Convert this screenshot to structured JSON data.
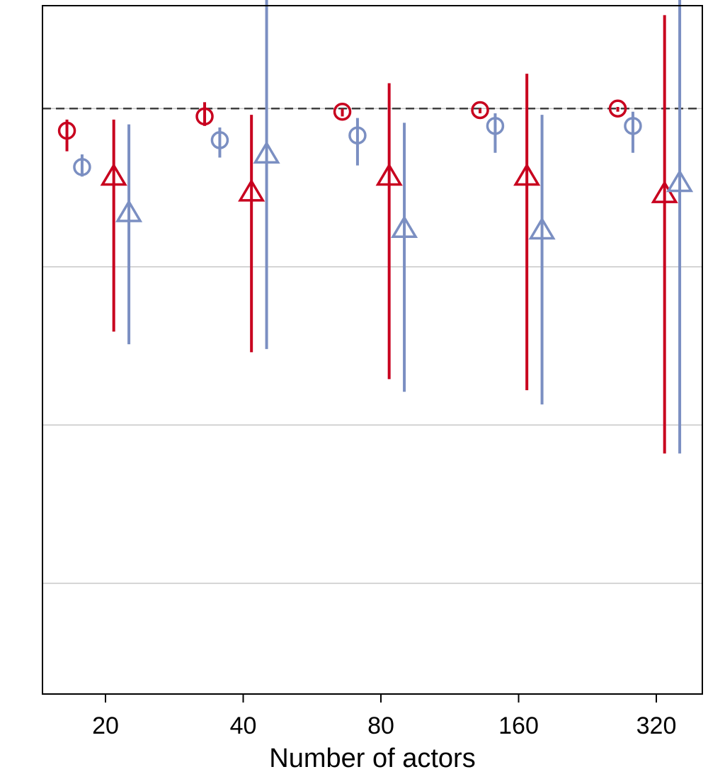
{
  "chart_data": {
    "type": "scatter",
    "xlabel": "Number of actors",
    "categories": [
      "20",
      "40",
      "80",
      "160",
      "320"
    ],
    "ylim": [
      -3.2,
      1.15
    ],
    "y_gridlines": [
      -2.5,
      -1.5,
      -0.5,
      0.5,
      1.5
    ],
    "reference_line": 0.5,
    "grid": true,
    "colors": {
      "red": "#c8001e",
      "blue": "#7b8fc2",
      "grid": "#c8c8c8",
      "reference": "#404040"
    },
    "series": [
      {
        "marker": "circle",
        "color": "#c8001e",
        "offset": -0.28,
        "points": [
          {
            "y": 0.36,
            "low": 0.23,
            "high": 0.43
          },
          {
            "y": 0.45,
            "low": 0.39,
            "high": 0.54
          },
          {
            "y": 0.48,
            "low": 0.45,
            "high": 0.5
          },
          {
            "y": 0.49,
            "low": 0.47,
            "high": 0.5
          },
          {
            "y": 0.5,
            "low": 0.48,
            "high": 0.51
          }
        ]
      },
      {
        "marker": "circle",
        "color": "#7b8fc2",
        "offset": -0.17,
        "points": [
          {
            "y": 0.13,
            "low": 0.07,
            "high": 0.21
          },
          {
            "y": 0.3,
            "low": 0.19,
            "high": 0.38
          },
          {
            "y": 0.33,
            "low": 0.14,
            "high": 0.44
          },
          {
            "y": 0.39,
            "low": 0.22,
            "high": 0.47
          },
          {
            "y": 0.39,
            "low": 0.22,
            "high": 0.48
          }
        ]
      },
      {
        "marker": "triangle",
        "color": "#c8001e",
        "offset": 0.06,
        "points": [
          {
            "y": 0.06,
            "low": -0.91,
            "high": 0.43
          },
          {
            "y": -0.04,
            "low": -1.04,
            "high": 0.46
          },
          {
            "y": 0.06,
            "low": -1.21,
            "high": 0.66
          },
          {
            "y": 0.06,
            "low": -1.28,
            "high": 0.72
          },
          {
            "y": -0.05,
            "low": -1.68,
            "high": 1.09
          }
        ]
      },
      {
        "marker": "triangle",
        "color": "#7b8fc2",
        "offset": 0.17,
        "points": [
          {
            "y": -0.17,
            "low": -0.99,
            "high": 0.4
          },
          {
            "y": 0.2,
            "low": -1.02,
            "high": 1.21
          },
          {
            "y": -0.27,
            "low": -1.29,
            "high": 0.41
          },
          {
            "y": -0.28,
            "low": -1.37,
            "high": 0.46
          },
          {
            "y": 0.02,
            "low": -1.68,
            "high": 1.22
          }
        ]
      }
    ]
  }
}
